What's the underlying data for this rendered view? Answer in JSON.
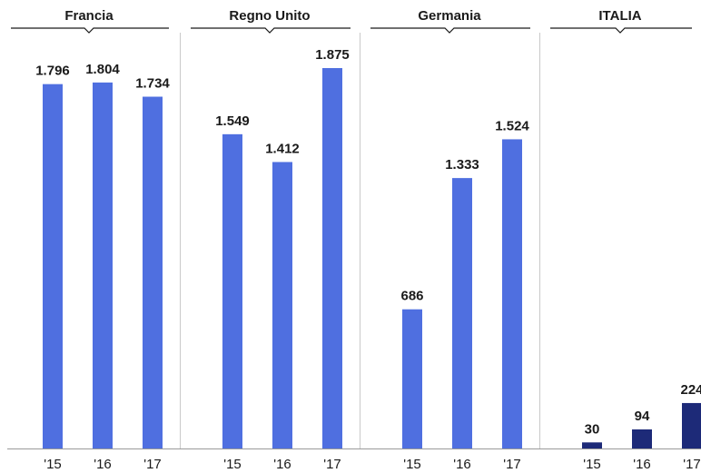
{
  "chart_data": {
    "type": "bar",
    "ylim": [
      0,
      2000
    ],
    "grid": false,
    "colors": {
      "default": "#4f6fe0",
      "highlight": "#1d2a78"
    },
    "panels": [
      {
        "title": "Francia",
        "highlight": false,
        "categories": [
          "'15",
          "'16",
          "'17"
        ],
        "values": [
          1796,
          1804,
          1734
        ],
        "labels": [
          "1.796",
          "1.804",
          "1.734"
        ]
      },
      {
        "title": "Regno Unito",
        "highlight": false,
        "categories": [
          "'15",
          "'16",
          "'17"
        ],
        "values": [
          1549,
          1412,
          1875
        ],
        "labels": [
          "1.549",
          "1.412",
          "1.875"
        ]
      },
      {
        "title": "Germania",
        "highlight": false,
        "categories": [
          "'15",
          "'16",
          "'17"
        ],
        "values": [
          686,
          1333,
          1524
        ],
        "labels": [
          "686",
          "1.333",
          "1.524"
        ]
      },
      {
        "title": "ITALIA",
        "highlight": true,
        "categories": [
          "'15",
          "'16",
          "'17"
        ],
        "values": [
          30,
          94,
          224
        ],
        "labels": [
          "30",
          "94",
          "224"
        ]
      }
    ]
  }
}
